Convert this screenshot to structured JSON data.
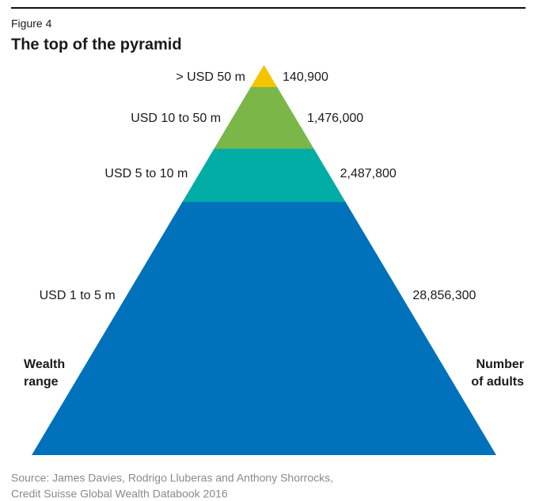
{
  "chart_data": {
    "type": "pyramid",
    "figure_label": "Figure 4",
    "title": "The top of the pyramid",
    "categories": [
      "> USD 50 m",
      "USD 10 to 50 m",
      "USD 5 to 10 m",
      "USD 1 to 5 m"
    ],
    "values": [
      140900,
      1476000,
      2487800,
      28856300
    ],
    "value_labels": [
      "140,900",
      "1,476,000",
      "2,487,800",
      "28,856,300"
    ],
    "colors": [
      "#f5c400",
      "#7ab648",
      "#00ada5",
      "#0071bb"
    ],
    "left_axis_label": [
      "Wealth",
      "range"
    ],
    "right_axis_label": [
      "Number",
      "of adults"
    ],
    "source": [
      "Source: James Davies, Rodrigo Lluberas and Anthony Shorrocks,",
      "Credit Suisse Global Wealth Databook 2016"
    ]
  }
}
